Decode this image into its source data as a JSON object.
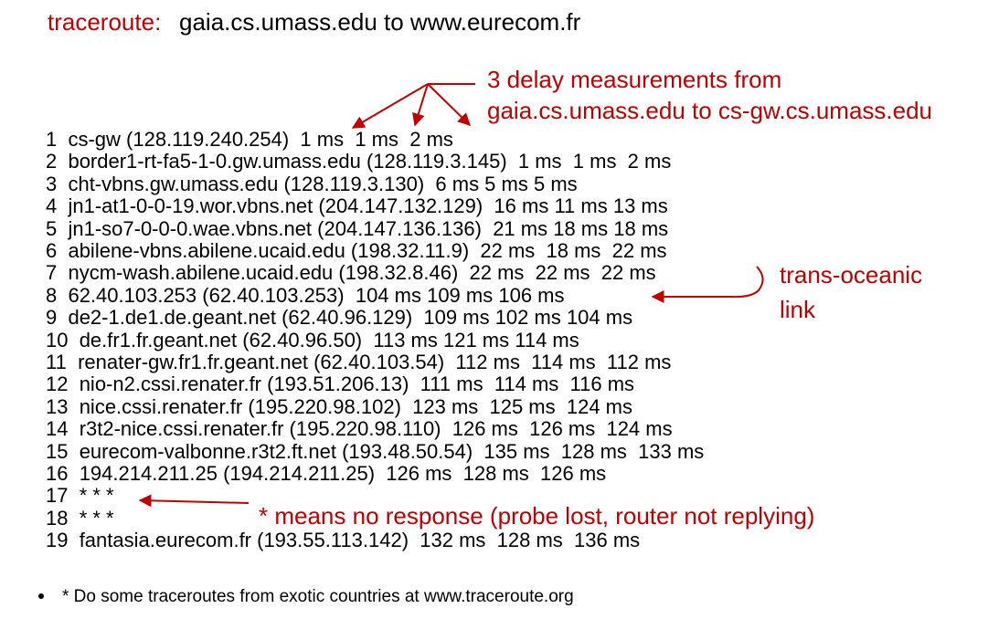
{
  "title": {
    "label": "traceroute:",
    "text": "gaia.cs.umass.edu to www.eurecom.fr"
  },
  "rows": [
    "1  cs-gw (128.119.240.254)  1 ms  1 ms  2 ms",
    "2  border1-rt-fa5-1-0.gw.umass.edu (128.119.3.145)  1 ms  1 ms  2 ms",
    "3  cht-vbns.gw.umass.edu (128.119.3.130)  6 ms 5 ms 5 ms",
    "4  jn1-at1-0-0-19.wor.vbns.net (204.147.132.129)  16 ms 11 ms 13 ms",
    "5  jn1-so7-0-0-0.wae.vbns.net (204.147.136.136)  21 ms 18 ms 18 ms",
    "6  abilene-vbns.abilene.ucaid.edu (198.32.11.9)  22 ms  18 ms  22 ms",
    "7  nycm-wash.abilene.ucaid.edu (198.32.8.46)  22 ms  22 ms  22 ms",
    "8  62.40.103.253 (62.40.103.253)  104 ms 109 ms 106 ms",
    "9  de2-1.de1.de.geant.net (62.40.96.129)  109 ms 102 ms 104 ms",
    "10  de.fr1.fr.geant.net (62.40.96.50)  113 ms 121 ms 114 ms",
    "11  renater-gw.fr1.fr.geant.net (62.40.103.54)  112 ms  114 ms  112 ms",
    "12  nio-n2.cssi.renater.fr (193.51.206.13)  111 ms  114 ms  116 ms",
    "13  nice.cssi.renater.fr (195.220.98.102)  123 ms  125 ms  124 ms",
    "14  r3t2-nice.cssi.renater.fr (195.220.98.110)  126 ms  126 ms  124 ms",
    "15  eurecom-valbonne.r3t2.ft.net (193.48.50.54)  135 ms  128 ms  133 ms",
    "16  194.214.211.25 (194.214.211.25)  126 ms  128 ms  126 ms",
    "17  * * *",
    "18  * * *",
    "19  fantasia.eurecom.fr (193.55.113.142)  132 ms  128 ms  136 ms"
  ],
  "annotations": {
    "delay": [
      "3 delay measurements from",
      "gaia.cs.umass.edu to cs-gw.cs.umass.edu"
    ],
    "oceanic": [
      "trans-oceanic",
      "link"
    ],
    "lost": "* means no response (probe lost, router not replying)"
  },
  "footnote": "* Do some traceroutes from exotic countries at www.traceroute.org"
}
